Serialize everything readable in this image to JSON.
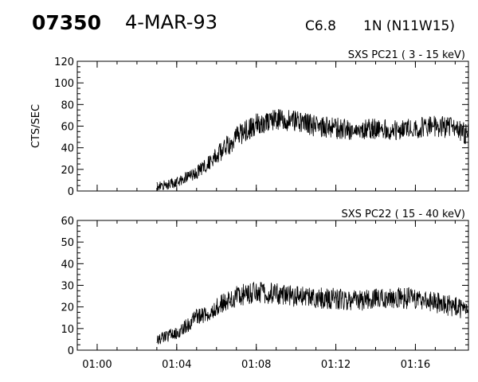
{
  "header": {
    "event_number": "07350",
    "date": "4-MAR-93",
    "flare_class": "C6.8",
    "location": "1N (N11W15)"
  },
  "chart_data": [
    {
      "type": "line",
      "title": "SXS PC21  (  3 - 15 keV)",
      "ylabel": "CTS/SEC",
      "xlabel": "",
      "ylim": [
        0,
        120
      ],
      "yticks": [
        0,
        20,
        40,
        60,
        80,
        100,
        120
      ],
      "xlim": [
        "00:59:00",
        "01:18:40"
      ],
      "xticks": [
        "01:00",
        "01:04",
        "01:08",
        "01:12",
        "01:16"
      ],
      "grid": false,
      "series": [
        {
          "values_approx": [
            {
              "t": "01:03:00",
              "y": 4
            },
            {
              "t": "01:04:00",
              "y": 8
            },
            {
              "t": "01:05:00",
              "y": 17
            },
            {
              "t": "01:06:00",
              "y": 32
            },
            {
              "t": "01:07:00",
              "y": 50
            },
            {
              "t": "01:08:00",
              "y": 62
            },
            {
              "t": "01:09:00",
              "y": 66
            },
            {
              "t": "01:10:00",
              "y": 65
            },
            {
              "t": "01:11:00",
              "y": 60
            },
            {
              "t": "01:12:00",
              "y": 58
            },
            {
              "t": "01:13:00",
              "y": 56
            },
            {
              "t": "01:14:00",
              "y": 57
            },
            {
              "t": "01:15:00",
              "y": 57
            },
            {
              "t": "01:16:00",
              "y": 58
            },
            {
              "t": "01:17:00",
              "y": 60
            },
            {
              "t": "01:18:00",
              "y": 58
            },
            {
              "t": "01:18:40",
              "y": 52
            }
          ]
        }
      ]
    },
    {
      "type": "line",
      "title": "SXS PC22  ( 15 - 40 keV)",
      "ylabel": "",
      "xlabel": "",
      "ylim": [
        0,
        60
      ],
      "yticks": [
        0,
        10,
        20,
        30,
        40,
        50,
        60
      ],
      "xlim": [
        "00:59:00",
        "01:18:40"
      ],
      "xticks": [
        "01:00",
        "01:04",
        "01:08",
        "01:12",
        "01:16"
      ],
      "grid": false,
      "series": [
        {
          "values_approx": [
            {
              "t": "01:03:00",
              "y": 5
            },
            {
              "t": "01:04:00",
              "y": 8
            },
            {
              "t": "01:05:00",
              "y": 15
            },
            {
              "t": "01:06:00",
              "y": 20
            },
            {
              "t": "01:07:00",
              "y": 25
            },
            {
              "t": "01:08:00",
              "y": 27
            },
            {
              "t": "01:09:00",
              "y": 26
            },
            {
              "t": "01:10:00",
              "y": 25
            },
            {
              "t": "01:11:00",
              "y": 24
            },
            {
              "t": "01:12:00",
              "y": 24
            },
            {
              "t": "01:13:00",
              "y": 23
            },
            {
              "t": "01:14:00",
              "y": 24
            },
            {
              "t": "01:15:00",
              "y": 24
            },
            {
              "t": "01:16:00",
              "y": 24
            },
            {
              "t": "01:17:00",
              "y": 22
            },
            {
              "t": "01:18:00",
              "y": 20
            },
            {
              "t": "01:18:40",
              "y": 17
            }
          ]
        }
      ]
    }
  ]
}
